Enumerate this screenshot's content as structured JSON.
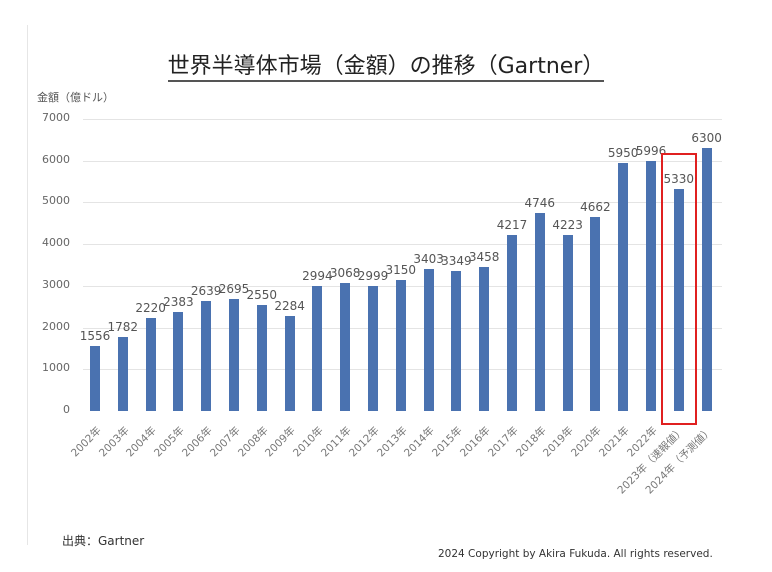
{
  "title": "世界半導体市場（金額）の推移（Gartner）",
  "y_unit_label": "金額（億ドル）",
  "source": "出典：Gartner",
  "copyright": "2024 Copyright by Akira Fukuda. All rights reserved.",
  "colors": {
    "bar": "#4a72b0",
    "highlight": "#e02020",
    "grid": "#e4e4e4"
  },
  "chart_data": {
    "type": "bar",
    "title": "世界半導体市場（金額）の推移（Gartner）",
    "xlabel": "",
    "ylabel": "金額（億ドル）",
    "ylim": [
      0,
      7000
    ],
    "yticks": [
      0,
      1000,
      2000,
      3000,
      4000,
      5000,
      6000,
      7000
    ],
    "grid": true,
    "legend": null,
    "categories": [
      "2002年",
      "2003年",
      "2004年",
      "2005年",
      "2006年",
      "2007年",
      "2008年",
      "2009年",
      "2010年",
      "2011年",
      "2012年",
      "2013年",
      "2014年",
      "2015年",
      "2016年",
      "2017年",
      "2018年",
      "2019年",
      "2020年",
      "2021年",
      "2022年",
      "2023年（速報値）",
      "2024年（予測値）"
    ],
    "values": [
      1556,
      1782,
      2220,
      2383,
      2639,
      2695,
      2550,
      2284,
      2994,
      3068,
      2999,
      3150,
      3403,
      3349,
      3458,
      4217,
      4746,
      4223,
      4662,
      5950,
      5996,
      5330,
      6300
    ],
    "annotations": [
      {
        "type": "highlight-box",
        "target": "2023年（速報値）",
        "color": "#e02020"
      }
    ],
    "source": "出典：Gartner"
  }
}
